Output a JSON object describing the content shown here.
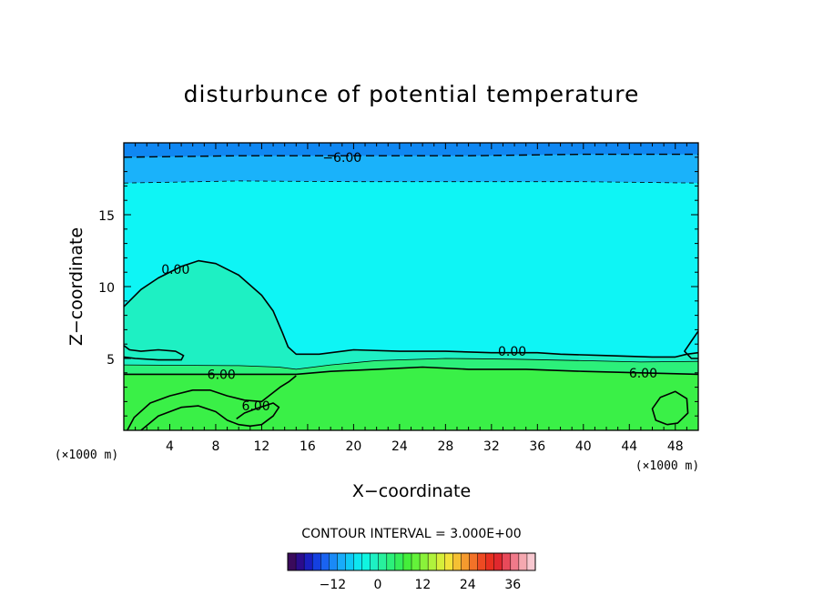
{
  "chart_data": {
    "type": "contour",
    "title": "disturbunce of potential temperature",
    "xlabel": "X−coordinate",
    "ylabel": "Z−coordinate",
    "x_unit_label": "(×1000 m)",
    "xlim": [
      0,
      50
    ],
    "ylim": [
      0,
      20
    ],
    "x_ticks": [
      4,
      8,
      12,
      16,
      20,
      24,
      28,
      32,
      36,
      40,
      44,
      48
    ],
    "y_ticks": [
      5,
      10,
      15
    ],
    "contour_interval_text": "CONTOUR INTERVAL = 3.000E+00",
    "contour_interval": 3.0,
    "contour_labels": [
      {
        "text": "−6.00",
        "value": -6.0,
        "x": 19,
        "z": 19.0
      },
      {
        "text": "0.00",
        "value": 0.0,
        "x": 4.5,
        "z": 11.2
      },
      {
        "text": "0.00",
        "value": 0.0,
        "x": 33.8,
        "z": 5.5
      },
      {
        "text": "6.00",
        "value": 6.0,
        "x": 8.5,
        "z": 3.9
      },
      {
        "text": "6.00",
        "value": 6.0,
        "x": 11.5,
        "z": 1.7
      },
      {
        "text": "6.00",
        "value": 6.0,
        "x": 45.2,
        "z": 4.0
      }
    ],
    "contours": [
      {
        "value": -6.0,
        "style": "dashed",
        "points": [
          [
            0,
            19.0
          ],
          [
            10,
            19.1
          ],
          [
            20,
            19.1
          ],
          [
            30,
            19.1
          ],
          [
            40,
            19.2
          ],
          [
            50,
            19.2
          ]
        ]
      },
      {
        "value": -3.0,
        "style": "dashed-thin",
        "points": [
          [
            0,
            17.2
          ],
          [
            10,
            17.35
          ],
          [
            20,
            17.3
          ],
          [
            30,
            17.3
          ],
          [
            40,
            17.3
          ],
          [
            50,
            17.2
          ]
        ]
      },
      {
        "value": 0.0,
        "style": "solid",
        "points": [
          [
            0,
            8.6
          ],
          [
            1.5,
            9.8
          ],
          [
            3,
            10.6
          ],
          [
            5,
            11.4
          ],
          [
            6.5,
            11.8
          ],
          [
            8,
            11.6
          ],
          [
            10,
            10.8
          ],
          [
            12,
            9.4
          ],
          [
            13,
            8.3
          ],
          [
            13.8,
            6.8
          ],
          [
            14.3,
            5.8
          ],
          [
            15,
            5.3
          ],
          [
            17,
            5.3
          ],
          [
            20,
            5.6
          ],
          [
            24,
            5.5
          ],
          [
            28,
            5.5
          ],
          [
            32,
            5.4
          ],
          [
            36,
            5.4
          ],
          [
            38,
            5.3
          ],
          [
            42,
            5.2
          ],
          [
            46,
            5.1
          ],
          [
            48,
            5.1
          ],
          [
            49,
            5.3
          ],
          [
            50,
            5.4
          ]
        ]
      },
      {
        "value": 0.0,
        "style": "solid",
        "points": [
          [
            50,
            6.9
          ],
          [
            49.4,
            6.2
          ],
          [
            48.8,
            5.5
          ],
          [
            49.4,
            5.0
          ],
          [
            50,
            5.0
          ]
        ]
      },
      {
        "value": 3.0,
        "style": "solid-thin",
        "points": [
          [
            0,
            4.55
          ],
          [
            10,
            4.5
          ],
          [
            13.5,
            4.4
          ],
          [
            15,
            4.25
          ],
          [
            18,
            4.55
          ],
          [
            22,
            4.85
          ],
          [
            28,
            5.0
          ],
          [
            34,
            4.95
          ],
          [
            40,
            4.85
          ],
          [
            45,
            4.75
          ],
          [
            50,
            4.8
          ]
        ]
      },
      {
        "value": 6.0,
        "style": "solid",
        "points": [
          [
            0,
            3.9
          ],
          [
            10,
            3.9
          ],
          [
            15,
            3.9
          ],
          [
            18,
            4.1
          ],
          [
            22,
            4.25
          ],
          [
            26,
            4.4
          ],
          [
            30,
            4.25
          ],
          [
            35,
            4.25
          ],
          [
            40,
            4.1
          ],
          [
            45,
            4.0
          ],
          [
            50,
            3.9
          ]
        ]
      },
      {
        "value": 0.0,
        "style": "solid",
        "points": [
          [
            0,
            5.9
          ],
          [
            0.5,
            5.6
          ],
          [
            1.5,
            5.5
          ],
          [
            3,
            5.6
          ],
          [
            4.5,
            5.5
          ],
          [
            5.2,
            5.2
          ],
          [
            5,
            4.9
          ],
          [
            3,
            4.9
          ],
          [
            1,
            5.0
          ],
          [
            0,
            5.1
          ]
        ]
      },
      {
        "value": 6.0,
        "style": "solid",
        "points": [
          [
            0.3,
            0
          ],
          [
            0.9,
            0.9
          ],
          [
            2.3,
            1.9
          ],
          [
            4,
            2.4
          ],
          [
            6,
            2.8
          ],
          [
            7.5,
            2.8
          ],
          [
            9,
            2.4
          ],
          [
            10.5,
            2.1
          ],
          [
            12,
            2.0
          ],
          [
            12.8,
            2.5
          ],
          [
            13.6,
            3.0
          ],
          [
            14.4,
            3.4
          ],
          [
            15,
            3.8
          ]
        ]
      },
      {
        "value": 6.0,
        "style": "solid",
        "points": [
          [
            1.5,
            0
          ],
          [
            3,
            1.0
          ],
          [
            5,
            1.6
          ],
          [
            6.5,
            1.7
          ],
          [
            8,
            1.3
          ],
          [
            9,
            0.7
          ],
          [
            10,
            0.4
          ],
          [
            11,
            0.3
          ],
          [
            12,
            0.4
          ],
          [
            13,
            1.0
          ],
          [
            13.5,
            1.6
          ],
          [
            13,
            1.9
          ],
          [
            11.5,
            1.5
          ],
          [
            10.5,
            1.2
          ],
          [
            9.8,
            0.8
          ]
        ]
      },
      {
        "value": 6.0,
        "style": "solid",
        "points": [
          [
            47.3,
            0.4
          ],
          [
            46.3,
            0.7
          ],
          [
            46,
            1.5
          ],
          [
            46.7,
            2.3
          ],
          [
            48,
            2.7
          ],
          [
            49,
            2.2
          ],
          [
            49.1,
            1.2
          ],
          [
            48.2,
            0.5
          ],
          [
            47.3,
            0.4
          ]
        ]
      }
    ],
    "fill_bands": [
      {
        "range": "<=-6",
        "color": "#0f87f2"
      },
      {
        "range": "-6..-3",
        "color": "#1ab2fa"
      },
      {
        "range": "-3..0",
        "color": "#0ef5f5"
      },
      {
        "range": "0..3",
        "color": "#1ef0c3"
      },
      {
        "range": "3..6",
        "color": "#2cf07a"
      },
      {
        "range": ">=6",
        "color": "#3af047"
      }
    ],
    "colorbar": {
      "ticks": [
        "−12",
        "0",
        "12",
        "24",
        "36"
      ],
      "tick_values": [
        -12,
        0,
        12,
        24,
        36
      ],
      "range": [
        -24,
        42
      ],
      "colors": [
        "#3a0a5c",
        "#2b0c8c",
        "#1a1fbf",
        "#1440e0",
        "#1a63f0",
        "#1a8af7",
        "#18acfa",
        "#10c9f5",
        "#0ee6f0",
        "#10f5e0",
        "#1ef0c3",
        "#28f09c",
        "#2cf07a",
        "#34ee5a",
        "#44ee3a",
        "#64f23a",
        "#8af23a",
        "#b0f23c",
        "#d6ee3a",
        "#f2e23a",
        "#f5c033",
        "#f59a2e",
        "#f27228",
        "#ee4a22",
        "#e83020",
        "#e0282e",
        "#e84a5a",
        "#f07a8a",
        "#f5a8b0",
        "#f8c8d0"
      ]
    }
  }
}
